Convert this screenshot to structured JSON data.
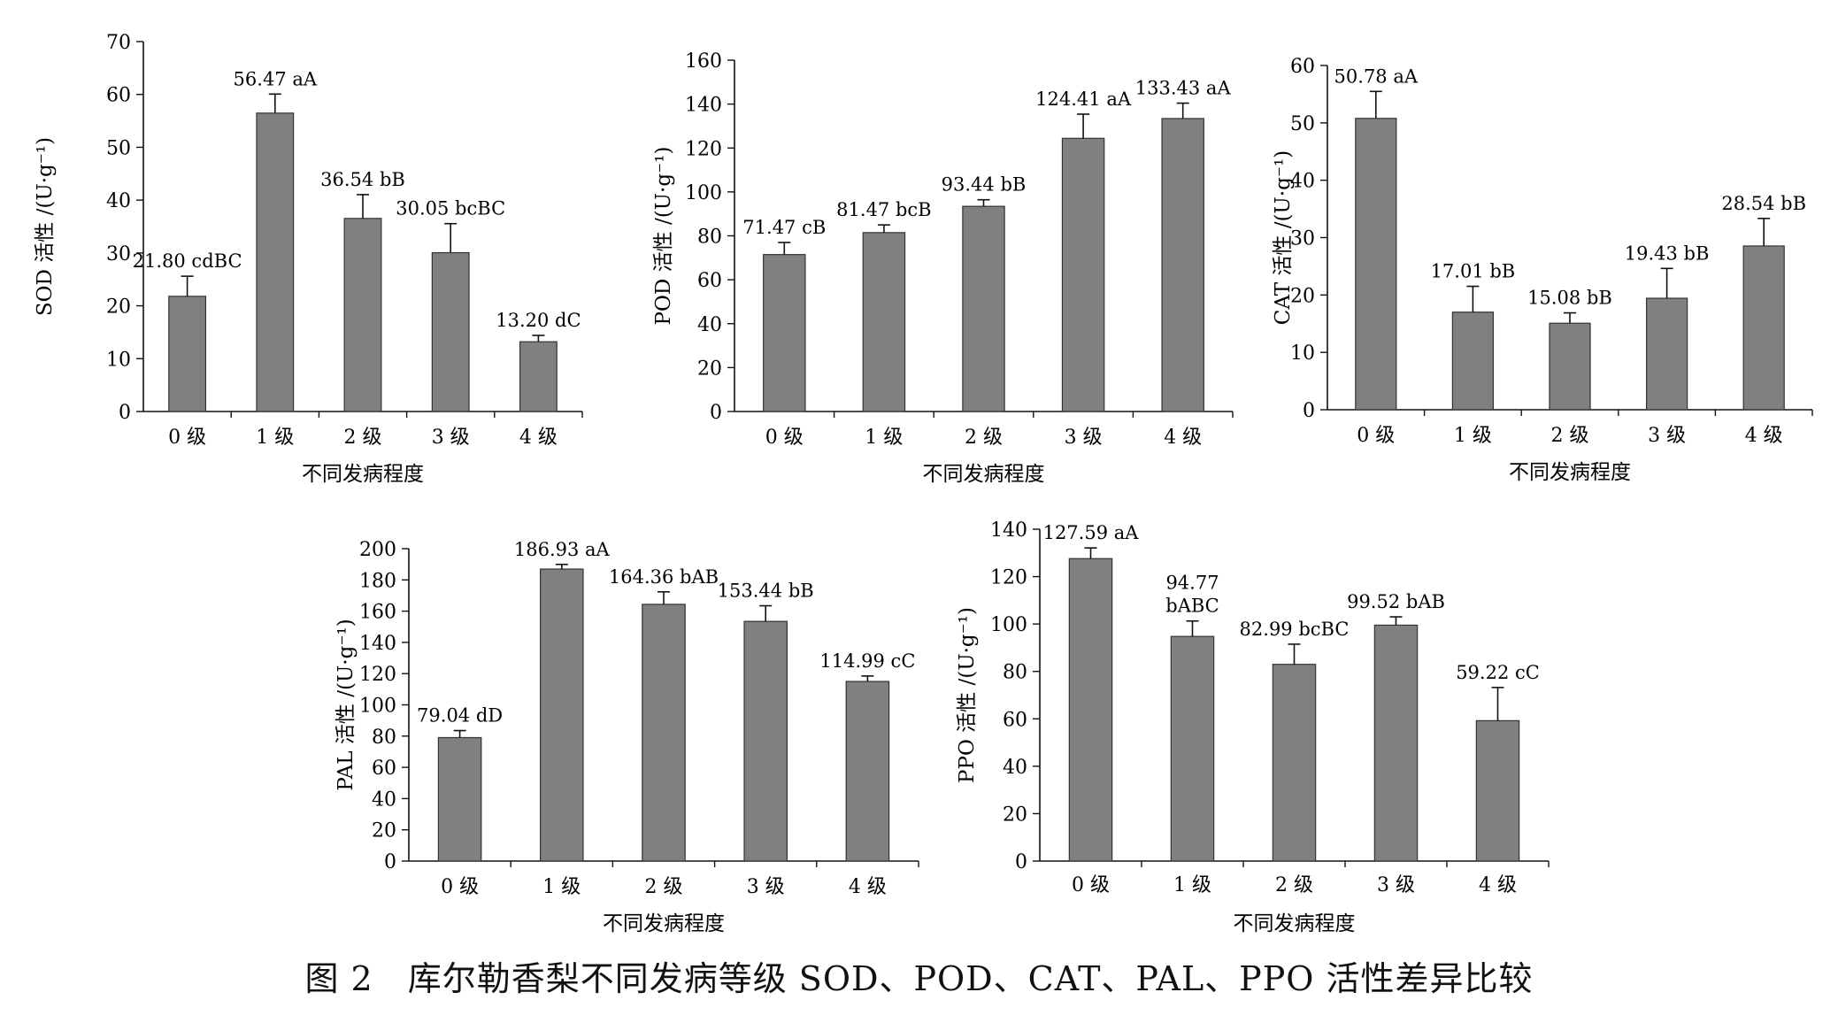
{
  "caption": "图 2　库尔勒香梨不同发病等级 SOD、POD、CAT、PAL、PPO 活性差异比较",
  "chart_data": [
    {
      "id": "sod",
      "type": "bar",
      "categories": [
        "0 级",
        "1 级",
        "2 级",
        "3 级",
        "4 级"
      ],
      "values": [
        21.8,
        56.47,
        36.54,
        30.05,
        13.2
      ],
      "errors": [
        3.8,
        3.6,
        4.5,
        5.5,
        1.2
      ],
      "labels": [
        "21.80 cdBC",
        "56.47 aA",
        "36.54 bB",
        "30.05 bcBC",
        "13.20 dC"
      ],
      "ylabel": "SOD 活性 /(U·g⁻¹)",
      "xlabel": "不同发病程度",
      "ylim": [
        0,
        70
      ],
      "yticks": [
        0,
        10,
        20,
        30,
        40,
        50,
        60,
        70
      ],
      "bar_color": "#808080"
    },
    {
      "id": "pod",
      "type": "bar",
      "categories": [
        "0 级",
        "1 级",
        "2 级",
        "3 级",
        "4 级"
      ],
      "values": [
        71.47,
        81.47,
        93.44,
        124.41,
        133.43
      ],
      "errors": [
        5.5,
        3.5,
        3.0,
        11.0,
        7.0
      ],
      "labels": [
        "71.47 cB",
        "81.47 bcB",
        "93.44 bB",
        "124.41 aA",
        "133.43 aA"
      ],
      "ylabel": "POD 活性 /(U·g⁻¹)",
      "xlabel": "不同发病程度",
      "ylim": [
        0,
        160
      ],
      "yticks": [
        0,
        20,
        40,
        60,
        80,
        100,
        120,
        140,
        160
      ],
      "bar_color": "#808080"
    },
    {
      "id": "cat",
      "type": "bar",
      "categories": [
        "0 级",
        "1 级",
        "2 级",
        "3 级",
        "4 级"
      ],
      "values": [
        50.78,
        17.01,
        15.08,
        19.43,
        28.54
      ],
      "errors": [
        4.7,
        4.5,
        1.8,
        5.2,
        4.8
      ],
      "labels": [
        "50.78 aA",
        "17.01 bB",
        "15.08 bB",
        "19.43 bB",
        "28.54 bB"
      ],
      "ylabel": "CAT 活性 /(U·g⁻¹)",
      "xlabel": "不同发病程度",
      "ylim": [
        0,
        60
      ],
      "yticks": [
        0,
        10,
        20,
        30,
        40,
        50,
        60
      ],
      "bar_color": "#808080"
    },
    {
      "id": "pal",
      "type": "bar",
      "categories": [
        "0 级",
        "1 级",
        "2 级",
        "3 级",
        "4 级"
      ],
      "values": [
        79.04,
        186.93,
        164.36,
        153.44,
        114.99
      ],
      "errors": [
        4.5,
        3.0,
        8.0,
        10.0,
        3.5
      ],
      "labels": [
        "79.04 dD",
        "186.93 aA",
        "164.36 bAB",
        "153.44 bB",
        "114.99 cC"
      ],
      "ylabel": "PAL 活性 /(U·g⁻¹)",
      "xlabel": "不同发病程度",
      "ylim": [
        0,
        200
      ],
      "yticks": [
        0,
        20,
        40,
        60,
        80,
        100,
        120,
        140,
        160,
        180,
        200
      ],
      "bar_color": "#808080"
    },
    {
      "id": "ppo",
      "type": "bar",
      "categories": [
        "0 级",
        "1 级",
        "2 级",
        "3 级",
        "4 级"
      ],
      "values": [
        127.59,
        94.77,
        82.99,
        99.52,
        59.22
      ],
      "errors": [
        4.5,
        6.5,
        8.5,
        3.5,
        14.0
      ],
      "labels": [
        "127.59 aA",
        "94.77 bABC",
        "82.99 bcBC",
        "99.52 bAB",
        "59.22 cC"
      ],
      "ylabel": "PPO 活性 /(U·g⁻¹)",
      "xlabel": "不同发病程度",
      "ylim": [
        0,
        140
      ],
      "yticks": [
        0,
        20,
        40,
        60,
        80,
        100,
        120,
        140
      ],
      "bar_color": "#808080"
    }
  ]
}
